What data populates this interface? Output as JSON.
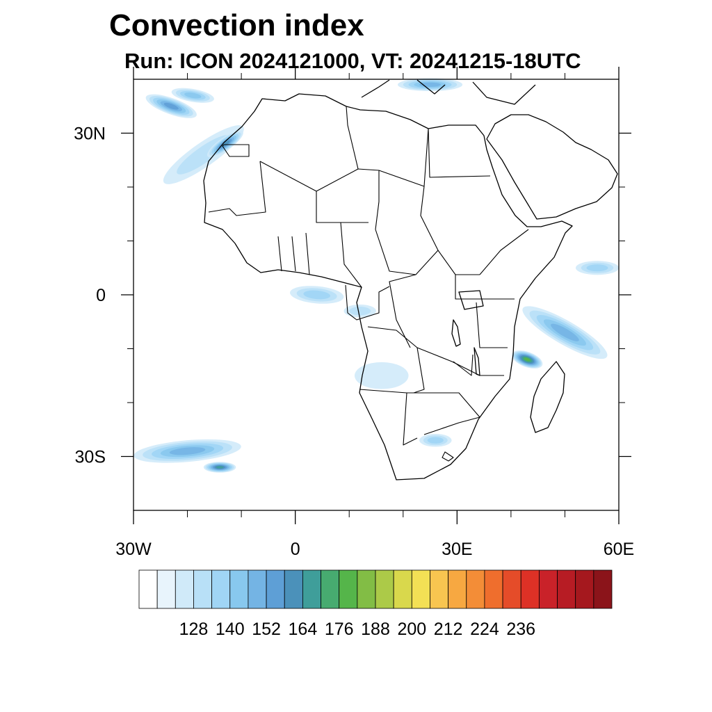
{
  "header": {
    "title": "Convection index",
    "subtitle": "Run: ICON 2024121000,  VT: 20241215-18UTC"
  },
  "map": {
    "extent": {
      "lon": [
        -30,
        60
      ],
      "lat": [
        -40,
        40
      ]
    },
    "lat_ticks": [
      {
        "value": 30,
        "label": "30N"
      },
      {
        "value": 0,
        "label": "0"
      },
      {
        "value": -30,
        "label": "30S"
      }
    ],
    "lon_ticks": [
      {
        "value": -30,
        "label": "30W"
      },
      {
        "value": 0,
        "label": "0"
      },
      {
        "value": 30,
        "label": "30E"
      },
      {
        "value": 60,
        "label": "60E"
      }
    ],
    "minor_lon_ticks": [
      -20,
      -10,
      10,
      20,
      40,
      50
    ],
    "minor_lat_ticks": [
      20,
      10,
      -10,
      -20
    ],
    "field_patches": [
      {
        "lon": -17,
        "lat": 26,
        "rx": 9,
        "ry": 2.2,
        "rot": 35,
        "level": 3
      },
      {
        "lon": -13,
        "lat": 28,
        "rx": 4,
        "ry": 1.2,
        "rot": 35,
        "level": 8
      },
      {
        "lon": -23,
        "lat": 35,
        "rx": 5,
        "ry": 1.5,
        "rot": -20,
        "level": 7
      },
      {
        "lon": -19,
        "lat": 37,
        "rx": 4,
        "ry": 1.2,
        "rot": -10,
        "level": 5
      },
      {
        "lon": 4,
        "lat": 0,
        "rx": 5,
        "ry": 1.6,
        "rot": -5,
        "level": 4
      },
      {
        "lon": 12,
        "lat": -3,
        "rx": 3,
        "ry": 1.2,
        "rot": 0,
        "level": 3
      },
      {
        "lon": 50,
        "lat": -7,
        "rx": 9,
        "ry": 2.2,
        "rot": -30,
        "level": 6
      },
      {
        "lon": 43,
        "lat": -12,
        "rx": 3,
        "ry": 1.4,
        "rot": -20,
        "level": 11
      },
      {
        "lon": 56,
        "lat": 5,
        "rx": 4,
        "ry": 1.3,
        "rot": 0,
        "level": 4
      },
      {
        "lon": -20,
        "lat": -29,
        "rx": 10,
        "ry": 2,
        "rot": 5,
        "level": 6
      },
      {
        "lon": -14,
        "lat": -32,
        "rx": 3,
        "ry": 1,
        "rot": 0,
        "level": 9
      },
      {
        "lon": 26,
        "lat": -27,
        "rx": 3,
        "ry": 1.2,
        "rot": 0,
        "level": 4
      },
      {
        "lon": 16,
        "lat": -15,
        "rx": 5,
        "ry": 2.5,
        "rot": 0,
        "level": 2
      },
      {
        "lon": 25,
        "lat": 39,
        "rx": 6,
        "ry": 1.2,
        "rot": 0,
        "level": 6
      }
    ]
  },
  "colorbar": {
    "colors": [
      "#ffffff",
      "#e8f4fc",
      "#d0eaf9",
      "#b8e0f7",
      "#a0d5f5",
      "#88c8ee",
      "#74b4e4",
      "#5e9fd6",
      "#4b91ba",
      "#3f9e9a",
      "#47ab70",
      "#55b54a",
      "#82bd45",
      "#acca48",
      "#d9d84c",
      "#f3e055",
      "#f8c550",
      "#f7a841",
      "#f38d37",
      "#ef6e2d",
      "#e54c29",
      "#dd3126",
      "#c92229",
      "#b71c24",
      "#a5181e",
      "#8b141a"
    ],
    "tick_labels": [
      "128",
      "140",
      "152",
      "164",
      "176",
      "188",
      "200",
      "212",
      "224",
      "236"
    ],
    "label_every": 2,
    "label_start": 2
  }
}
